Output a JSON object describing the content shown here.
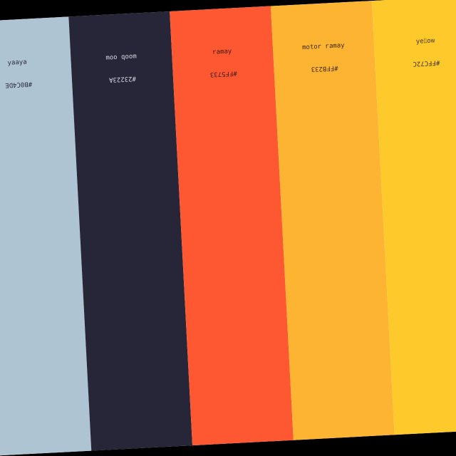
{
  "palette": {
    "swatches": [
      {
        "name": "ɐʎɐɐʎ",
        "hex": "#B0C4DE",
        "color": "#aec4d2",
        "text_color": "#2a2d3e"
      },
      {
        "name": "ɯoob ooɯ",
        "hex": "#23223A",
        "color": "#262638",
        "text_color": "#d7d7e3"
      },
      {
        "name": "ʎɐɯɐɹ",
        "hex": "#FF5733",
        "color": "#fe5832",
        "text_color": "#3a1a10"
      },
      {
        "name": "ʎɐɯɐɹ ɹoʇoɯ",
        "hex": "#FFB233",
        "color": "#feb433",
        "text_color": "#3d2a0c"
      },
      {
        "name": "ʍoןןǝʎ",
        "hex": "#FFC72C",
        "color": "#fec92b",
        "text_color": "#3d300b"
      }
    ]
  }
}
